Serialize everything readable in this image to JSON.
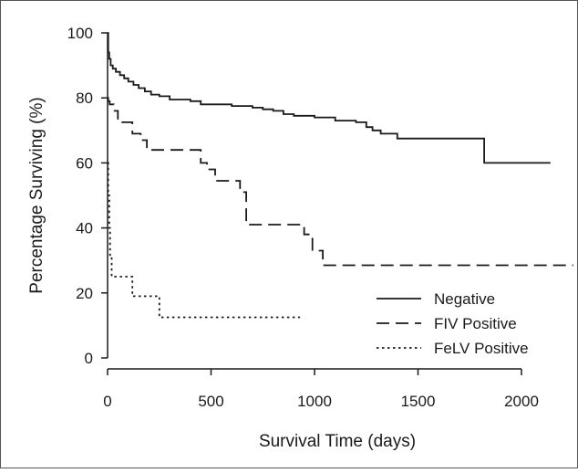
{
  "chart_data": {
    "type": "line",
    "title": "",
    "xlabel": "Survival Time (days)",
    "ylabel": "Percentage Surviving (%)",
    "xlim": [
      0,
      2250
    ],
    "ylim": [
      0,
      100
    ],
    "x_ticks": [
      0,
      500,
      1000,
      1500,
      2000
    ],
    "y_ticks": [
      0,
      20,
      40,
      60,
      80,
      100
    ],
    "x_tick_labels": [
      "0",
      "500",
      "1000",
      "1500",
      "2000"
    ],
    "y_tick_labels": [
      "0",
      "20",
      "40",
      "60",
      "80",
      "100"
    ],
    "step": true,
    "grid": false,
    "legend_position": "bottom-right",
    "series": [
      {
        "name": "Negative",
        "line_style": "solid",
        "color": "#1a1a1a",
        "x": [
          0,
          3,
          8,
          15,
          25,
          40,
          60,
          80,
          100,
          125,
          150,
          180,
          210,
          250,
          300,
          400,
          450,
          600,
          700,
          750,
          800,
          850,
          900,
          1000,
          1100,
          1200,
          1250,
          1280,
          1320,
          1400,
          1500,
          1700,
          1800,
          1820,
          2140
        ],
        "y": [
          100,
          94,
          92,
          90,
          89,
          88,
          87,
          86,
          85,
          84,
          83,
          82,
          81,
          80.5,
          79.5,
          79,
          78,
          77.5,
          77,
          76.5,
          76,
          75,
          74.5,
          74,
          73,
          72.5,
          71,
          70,
          69,
          67.5,
          67.5,
          67.5,
          67.5,
          60,
          60
        ]
      },
      {
        "name": "FIV Positive",
        "line_style": "dashed",
        "color": "#1a1a1a",
        "x": [
          0,
          3,
          10,
          30,
          50,
          120,
          160,
          190,
          260,
          400,
          450,
          480,
          520,
          600,
          640,
          670,
          880,
          950,
          990,
          1040,
          2250
        ],
        "y": [
          80,
          79,
          78,
          76,
          72.5,
          69,
          67,
          64,
          64,
          64,
          60,
          58,
          54.5,
          54.5,
          51,
          41,
          41,
          38,
          33,
          28.5,
          28.5
        ]
      },
      {
        "name": "FeLV Positive",
        "line_style": "dotted",
        "color": "#1a1a1a",
        "x": [
          0,
          3,
          8,
          12,
          20,
          120,
          250,
          930
        ],
        "y": [
          60,
          50,
          40,
          31,
          25,
          19,
          12.5,
          12.5
        ]
      }
    ]
  }
}
